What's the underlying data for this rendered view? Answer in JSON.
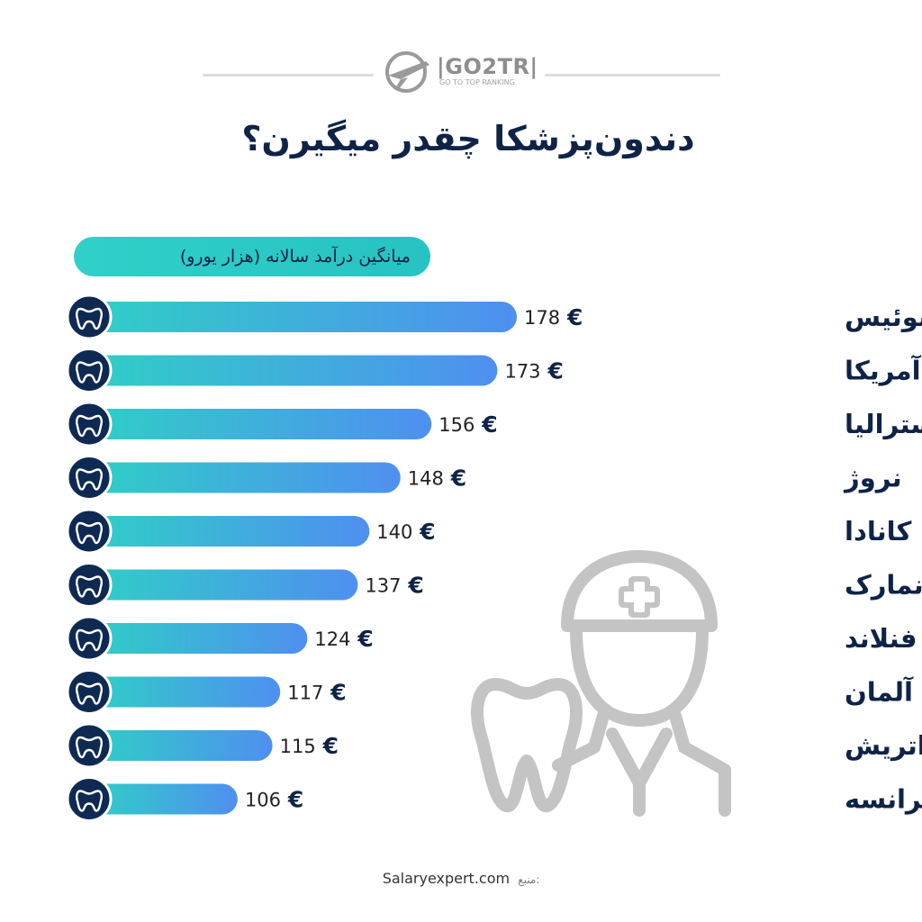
{
  "brand": {
    "name": "|GO2TR|",
    "tagline": "GO TO TOP RANKING"
  },
  "title": "دندون‌پزشکا چقدر میگیرن؟",
  "subtitle": "میانگین درآمد سالانه (هزار یورو)",
  "source_label": "منبع:",
  "source": "Salaryexpert.com",
  "currency_symbol": "€",
  "colors": {
    "navy": "#0f2347",
    "teal": "#2fcfc6",
    "blue": "#4f8ff0",
    "icon_circle": "#0f2a52",
    "illustration": "#c4c4c4"
  },
  "icons": {
    "row_icon": "tooth-icon",
    "illustration": "dentist-with-tooth-icon"
  },
  "chart_data": {
    "type": "bar",
    "orientation": "horizontal",
    "categories": [
      "سوئیس",
      "آمریکا",
      "استرالیا",
      "نروژ",
      "کانادا",
      "دانمارک",
      "فنلاند",
      "آلمان",
      "اتریش",
      "فرانسه"
    ],
    "values": [
      178,
      173,
      156,
      148,
      140,
      137,
      124,
      117,
      115,
      106
    ],
    "value_labels": [
      "178",
      "173",
      "156",
      "148",
      "140",
      "137",
      "124",
      "117",
      "115",
      "106"
    ],
    "unit": "€",
    "title": "دندون‌پزشکا چقدر میگیرن؟",
    "subtitle": "میانگین درآمد سالانه (هزار یورو)",
    "xlabel": "",
    "ylabel": "",
    "grid": false,
    "legend": "none"
  }
}
